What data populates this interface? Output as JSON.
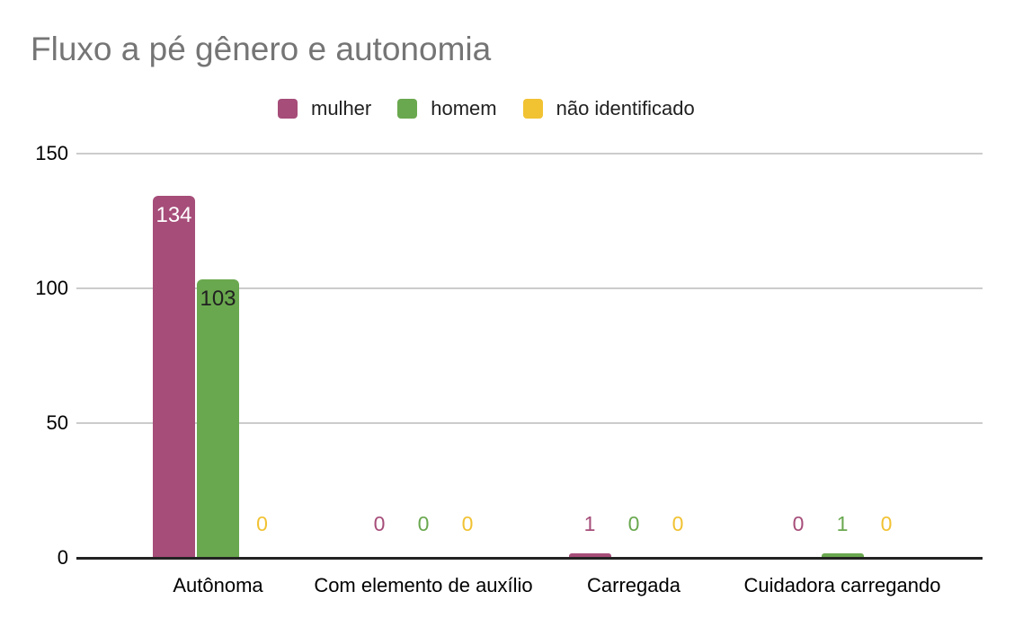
{
  "chart_data": {
    "type": "bar",
    "title": "Fluxo a pé gênero e autonomia",
    "xlabel": "",
    "ylabel": "",
    "categories": [
      "Autônoma",
      "Com elemento de auxílio",
      "Carregada",
      "Cuidadora carregando"
    ],
    "series": [
      {
        "name": "mulher",
        "color": "#a64d79",
        "inside_label_color": "#ffffff",
        "values": [
          134,
          0,
          1,
          0
        ]
      },
      {
        "name": "homem",
        "color": "#6aa84f",
        "inside_label_color": "#212121",
        "values": [
          103,
          0,
          0,
          1
        ]
      },
      {
        "name": "não identificado",
        "color": "#f1c232",
        "inside_label_color": "#212121",
        "values": [
          0,
          0,
          0,
          0
        ]
      }
    ],
    "y_axis": {
      "min": 0,
      "max": 150,
      "ticks": [
        0,
        50,
        100,
        150
      ]
    },
    "legend_position": "top",
    "grid": true,
    "value_labels": true,
    "styles": {
      "background": "#ffffff",
      "title_color": "#757575",
      "axis_text_color": "#000000",
      "gridline_color": "#cccccc",
      "axis_line_color": "#222222",
      "legend_text_color": "#212121"
    }
  }
}
